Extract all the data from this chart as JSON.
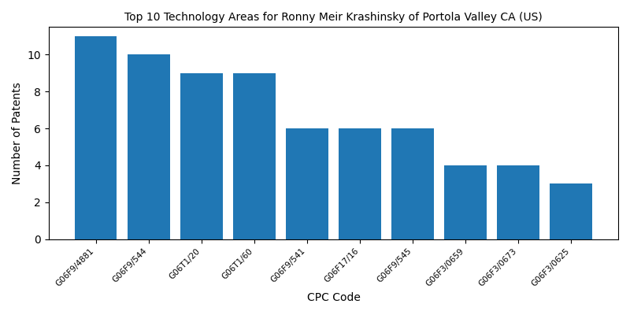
{
  "title": "Top 10 Technology Areas for Ronny Meir Krashinsky of Portola Valley CA (US)",
  "categories": [
    "G06F9/4881",
    "G06F9/544",
    "G06T1/20",
    "G06T1/60",
    "G06F9/541",
    "G06F17/16",
    "G06F9/545",
    "G06F3/0659",
    "G06F3/0673",
    "G06F3/0625"
  ],
  "values": [
    11,
    10,
    9,
    9,
    6,
    6,
    6,
    4,
    4,
    3
  ],
  "bar_color": "#2077b4",
  "xlabel": "CPC Code",
  "ylabel": "Number of Patents",
  "ylim": [
    0,
    11.5
  ],
  "yticks": [
    0,
    2,
    4,
    6,
    8,
    10
  ],
  "figsize": [
    8,
    4
  ],
  "dpi": 100,
  "bar_width": 0.8,
  "title_fontsize": 10,
  "label_fontsize": 10,
  "tick_fontsize": 7.5
}
